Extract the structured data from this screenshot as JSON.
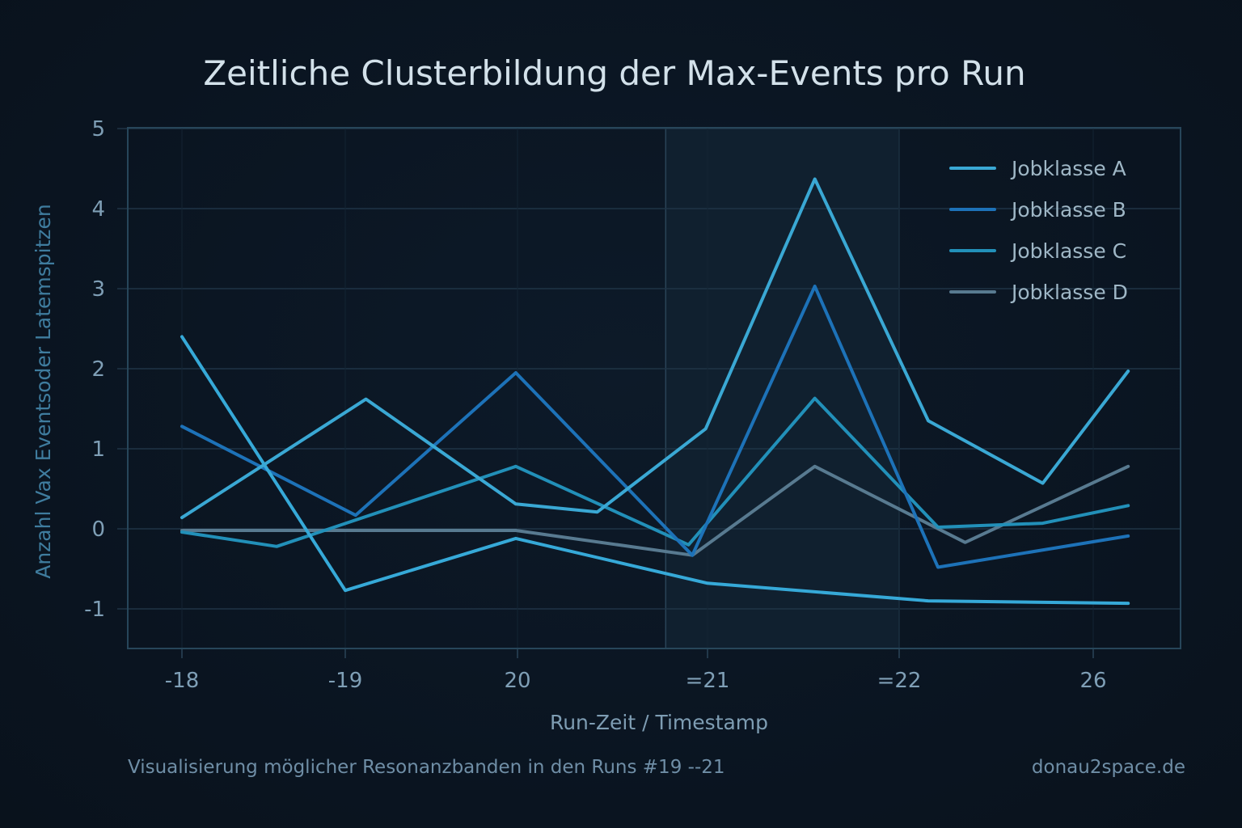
{
  "chart_data": {
    "type": "line",
    "title": "Zeitliche Clusterbildung der Max-Events pro Run",
    "xlabel": "Run-Zeit / Timestamp",
    "ylabel": "Anzahl Vax  Eventsoder Latemspitzen",
    "x_ticks": [
      "-18",
      "-19",
      "20",
      "=21",
      "=22",
      "26"
    ],
    "y_ticks": [
      "5",
      "4",
      "3",
      "2",
      "1",
      "0",
      "-1"
    ],
    "y_tick_values": [
      5,
      4,
      3,
      2,
      1,
      0,
      -1
    ],
    "ylim": [
      -1.5,
      5
    ],
    "xlim": [
      -0.3,
      5.5
    ],
    "x_units": "tick index (0 = -18 … 5 = 26)",
    "grid": true,
    "legend_position": "top-right",
    "highlight_band": {
      "x_start": 2.78,
      "x_end": 4.0
    },
    "series": [
      {
        "name": "Jobklasse A",
        "color": "#3aa8d4",
        "points": [
          [
            0,
            0.14
          ],
          [
            1.12,
            1.62
          ],
          [
            1.99,
            0.31
          ],
          [
            2.42,
            0.21
          ],
          [
            2.99,
            1.25
          ],
          [
            3.56,
            4.37
          ],
          [
            4.15,
            1.35
          ],
          [
            4.74,
            0.57
          ],
          [
            5.18,
            1.97
          ]
        ]
      },
      {
        "name": "Jobklasse B",
        "color": "#1d72b8",
        "points": [
          [
            0,
            1.28
          ],
          [
            1.06,
            0.17
          ],
          [
            1.99,
            1.95
          ],
          [
            2.92,
            -0.33
          ],
          [
            3.56,
            3.03
          ],
          [
            4.2,
            -0.48
          ],
          [
            5.18,
            -0.09
          ]
        ]
      },
      {
        "name": "Jobklasse C",
        "color": "#2290b9",
        "points": [
          [
            0,
            -0.04
          ],
          [
            0.58,
            -0.22
          ],
          [
            1.99,
            0.78
          ],
          [
            2.9,
            -0.2
          ],
          [
            3.56,
            1.63
          ],
          [
            4.2,
            0.02
          ],
          [
            4.74,
            0.07
          ],
          [
            5.18,
            0.29
          ]
        ]
      },
      {
        "name": "Jobklasse D",
        "color": "#587a90",
        "points": [
          [
            0,
            -0.02
          ],
          [
            1.99,
            -0.02
          ],
          [
            2.92,
            -0.33
          ],
          [
            3.56,
            0.78
          ],
          [
            4.34,
            -0.17
          ],
          [
            5.18,
            0.78
          ]
        ]
      },
      {
        "name": "",
        "color": "#36a9d8",
        "points": [
          [
            0,
            2.4
          ],
          [
            1.0,
            -0.77
          ],
          [
            1.99,
            -0.12
          ],
          [
            3.0,
            -0.68
          ],
          [
            4.15,
            -0.9
          ],
          [
            5.18,
            -0.93
          ]
        ]
      }
    ]
  },
  "footer": {
    "caption": "Visualisierung möglicher Resonanzbanden in den Runs #19 --21",
    "source": "donau2space.de"
  },
  "colors": {
    "background": "#0b1522",
    "band": "#10202f",
    "grid": "#1f3446",
    "frame": "#27465a"
  }
}
